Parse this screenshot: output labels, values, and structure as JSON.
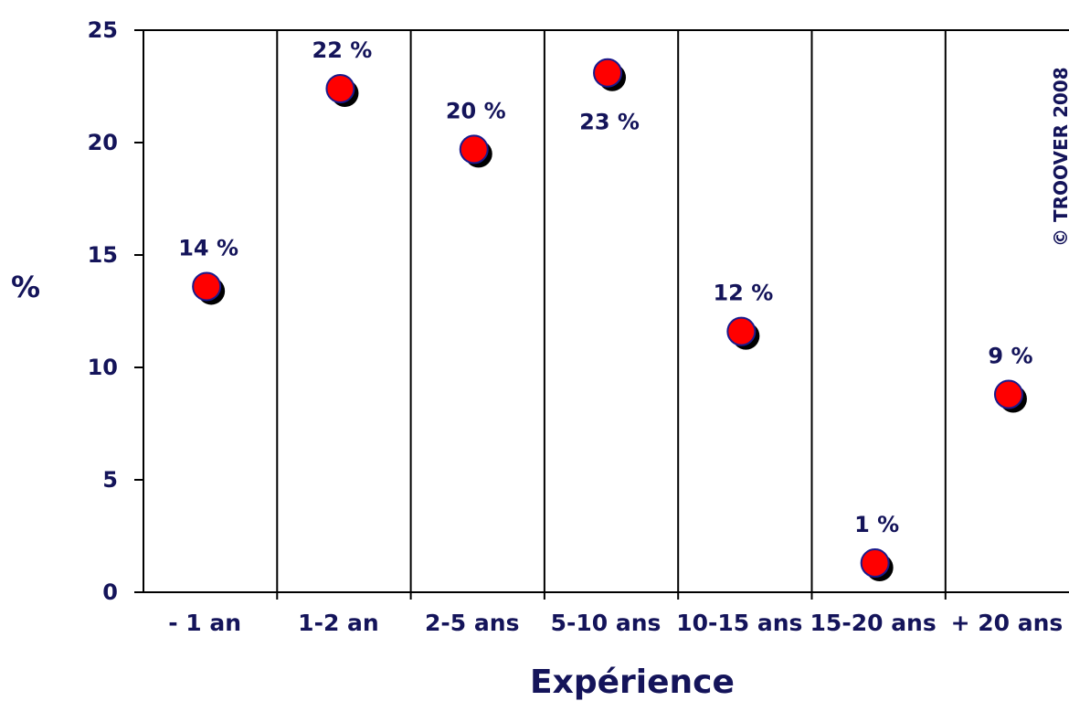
{
  "chart_data": {
    "type": "scatter",
    "categories": [
      "- 1 an",
      "1-2 an",
      "2-5 ans",
      "5-10 ans",
      "10-15 ans",
      "15-20 ans",
      "+ 20 ans"
    ],
    "values": [
      13.6,
      22.4,
      19.7,
      23.1,
      11.6,
      1.3,
      8.8
    ],
    "data_labels": [
      "14 %",
      "22 %",
      "20 %",
      "23 %",
      "12 %",
      "1 %",
      "9 %"
    ],
    "xlabel": "Expérience",
    "ylabel": "%",
    "ylim": [
      0,
      25
    ],
    "yticks": [
      "0",
      "5",
      "10",
      "15",
      "20",
      "25"
    ],
    "grid": "vertical separators between categories",
    "copyright": "© TROOVER 2008",
    "colors": {
      "marker": "#ff0000",
      "marker_outline": "#1a1a8c",
      "marker_shadow": "#000000",
      "text": "#14145a",
      "axis": "#000000"
    }
  }
}
